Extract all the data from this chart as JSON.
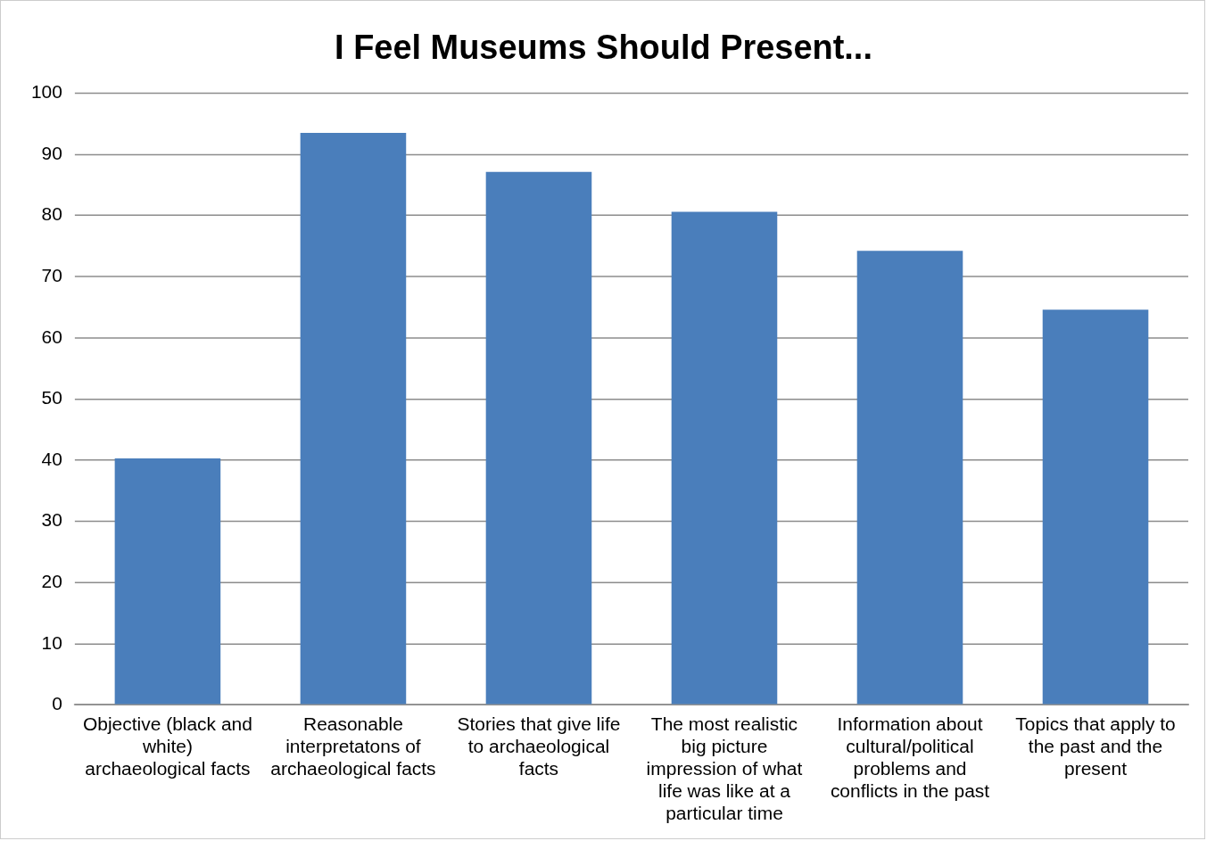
{
  "chart_data": {
    "type": "bar",
    "title": "I Feel Museums Should Present...",
    "categories": [
      "Objective (black and white) archaeological facts",
      "Reasonable interpretatons of archaeological facts",
      "Stories that give life to archaeological facts",
      "The most realistic big picture impression of what life was like at a particular time",
      "Information about cultural/political problems and conflicts in the past",
      "Topics that apply to the past and the present"
    ],
    "values": [
      40.3,
      93.5,
      87.1,
      80.6,
      74.2,
      64.6
    ],
    "color": "#4a7ebb",
    "ylim": [
      0,
      100
    ],
    "yticks": [
      0,
      10,
      20,
      30,
      40,
      50,
      60,
      70,
      80,
      90,
      100
    ],
    "grid": "y",
    "legend": false
  }
}
